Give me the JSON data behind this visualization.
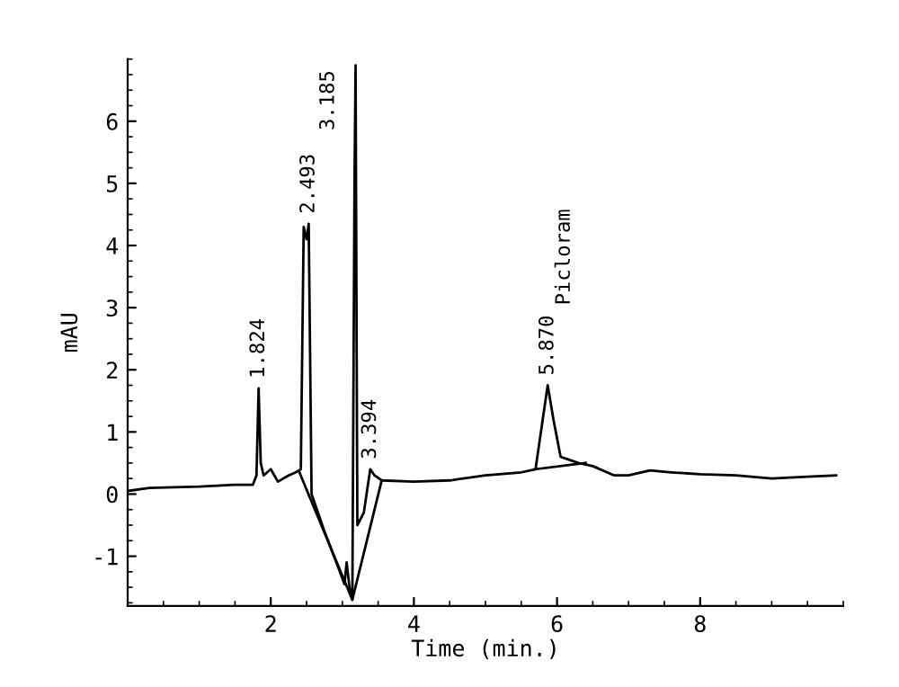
{
  "chart_data": {
    "type": "line",
    "xlabel": "Time (min.)",
    "ylabel": "mAU",
    "xlim": [
      0,
      10
    ],
    "ylim": [
      -1.8,
      7.0
    ],
    "xticks": [
      2,
      4,
      6,
      8
    ],
    "yticks": [
      -1,
      0,
      1,
      2,
      3,
      4,
      5,
      6
    ],
    "grid": false,
    "legend": false,
    "marker": "none",
    "line_style": "solid",
    "series": [
      {
        "color": "#000000",
        "x": [
          0,
          0.3,
          1.0,
          1.5,
          1.75,
          1.8,
          1.83,
          1.86,
          1.9,
          2.0,
          2.05,
          2.1,
          2.25,
          2.35,
          2.42,
          2.46,
          2.5,
          2.53,
          2.57,
          2.75,
          2.95,
          3.03,
          3.06,
          3.1,
          3.14,
          3.17,
          3.185,
          3.21,
          3.3,
          3.39,
          3.45,
          3.55,
          4.0,
          4.5,
          5.0,
          5.5,
          5.7,
          5.8,
          5.87,
          5.95,
          6.05,
          6.3,
          6.5,
          6.8,
          7.0,
          7.3,
          7.6,
          8.0,
          8.5,
          9.0,
          9.5,
          9.9
        ],
        "values": [
          0.05,
          0.1,
          0.12,
          0.15,
          0.15,
          0.3,
          1.7,
          0.5,
          0.3,
          0.4,
          0.3,
          0.2,
          0.3,
          0.35,
          0.4,
          4.3,
          4.1,
          4.35,
          0.0,
          -0.6,
          -1.2,
          -1.45,
          -1.1,
          -1.5,
          -1.7,
          5.0,
          6.9,
          -0.5,
          -0.3,
          0.4,
          0.3,
          0.22,
          0.2,
          0.22,
          0.3,
          0.35,
          0.4,
          1.2,
          1.75,
          1.2,
          0.6,
          0.5,
          0.45,
          0.3,
          0.3,
          0.38,
          0.35,
          0.32,
          0.3,
          0.25,
          0.28,
          0.3
        ]
      },
      {
        "color": "#000000",
        "x": [
          2.4,
          3.14,
          3.55
        ],
        "values": [
          0.35,
          -1.7,
          0.22
        ]
      },
      {
        "color": "#000000",
        "x": [
          5.7,
          6.4
        ],
        "values": [
          0.4,
          0.5
        ]
      }
    ],
    "annotations": [
      {
        "text": "1.824",
        "x": 1.83,
        "y": 1.7
      },
      {
        "text": "2.493",
        "x": 2.53,
        "y": 4.35
      },
      {
        "text": "3.185",
        "x": 3.185,
        "y": 6.9
      },
      {
        "text": "3.394",
        "x": 3.39,
        "y": 0.4
      },
      {
        "text": "5.870",
        "x": 5.87,
        "y": 1.75
      },
      "Picloram"
    ]
  }
}
